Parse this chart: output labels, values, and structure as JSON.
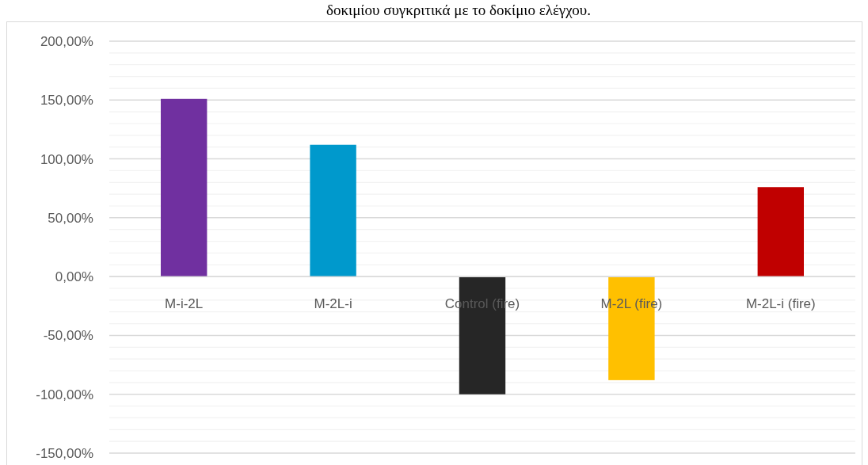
{
  "chart_data": {
    "type": "bar",
    "title": "δοκιμίου συγκριτικά με το δοκίμιο ελέγχου.",
    "categories": [
      "M-i-2L",
      "M-2L-i",
      "Control (fire)",
      "M-2L (fire)",
      "M-2L-i (fire)"
    ],
    "values": [
      151,
      112,
      -100,
      -88,
      76
    ],
    "colors": [
      "#7030a0",
      "#0099cc",
      "#262626",
      "#ffc000",
      "#c00000"
    ],
    "ylim": [
      -150,
      200
    ],
    "yticks": [
      {
        "value": 200,
        "label": "200,00%"
      },
      {
        "value": 190,
        "label": null
      },
      {
        "value": 180,
        "label": null
      },
      {
        "value": 170,
        "label": null
      },
      {
        "value": 160,
        "label": null
      },
      {
        "value": 150,
        "label": "150,00%"
      },
      {
        "value": 140,
        "label": null
      },
      {
        "value": 130,
        "label": null
      },
      {
        "value": 120,
        "label": null
      },
      {
        "value": 110,
        "label": null
      },
      {
        "value": 100,
        "label": "100,00%"
      },
      {
        "value": 90,
        "label": null
      },
      {
        "value": 80,
        "label": null
      },
      {
        "value": 70,
        "label": null
      },
      {
        "value": 60,
        "label": null
      },
      {
        "value": 50,
        "label": "50,00%"
      },
      {
        "value": 40,
        "label": null
      },
      {
        "value": 30,
        "label": null
      },
      {
        "value": 20,
        "label": null
      },
      {
        "value": 10,
        "label": null
      },
      {
        "value": 0,
        "label": "0,00%"
      },
      {
        "value": -10,
        "label": null
      },
      {
        "value": -20,
        "label": null
      },
      {
        "value": -30,
        "label": null
      },
      {
        "value": -40,
        "label": null
      },
      {
        "value": -50,
        "label": "-50,00%"
      },
      {
        "value": -60,
        "label": null
      },
      {
        "value": -70,
        "label": null
      },
      {
        "value": -80,
        "label": null
      },
      {
        "value": -90,
        "label": null
      },
      {
        "value": -100,
        "label": "-100,00%"
      },
      {
        "value": -110,
        "label": null
      },
      {
        "value": -120,
        "label": null
      },
      {
        "value": -130,
        "label": null
      },
      {
        "value": -140,
        "label": null
      },
      {
        "value": -150,
        "label": "-150,00%"
      }
    ],
    "grid": "y"
  }
}
